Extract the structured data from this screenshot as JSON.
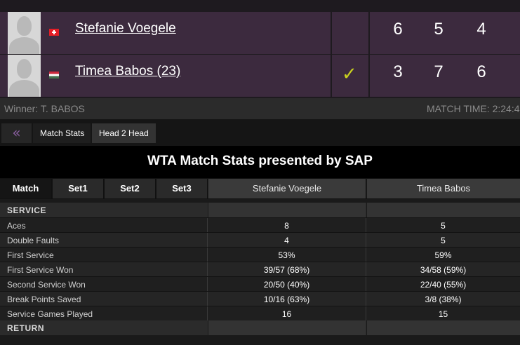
{
  "scoreboard": {
    "players": [
      {
        "name": "Stefanie Voegele",
        "flag": "sui-flag-icon",
        "winner": false,
        "sets": [
          "6",
          "5",
          "4"
        ]
      },
      {
        "name": "Timea Babos (23)",
        "flag": "hun-flag-icon",
        "winner": true,
        "check": "✓",
        "sets": [
          "3",
          "7",
          "6"
        ]
      }
    ],
    "winner_text": "Winner: T. BABOS",
    "match_time": "MATCH TIME: 2:24:4"
  },
  "tabs": {
    "back_icon": "«",
    "items": [
      {
        "label": "Match Stats"
      },
      {
        "label": "Head 2 Head"
      }
    ]
  },
  "stats": {
    "title": "WTA Match Stats presented by SAP",
    "filters": [
      "Match",
      "Set1",
      "Set2",
      "Set3"
    ],
    "player1": "Stefanie Voegele",
    "player2": "Timea Babos",
    "sections": {
      "service": "SERVICE",
      "return": "RETURN"
    },
    "rows": [
      {
        "label": "Aces",
        "p1": "8",
        "p2": "5"
      },
      {
        "label": "Double Faults",
        "p1": "4",
        "p2": "5"
      },
      {
        "label": "First Service",
        "p1": "53%",
        "p2": "59%"
      },
      {
        "label": "First Service Won",
        "p1": "39/57 (68%)",
        "p2": "34/58 (59%)"
      },
      {
        "label": "Second Service Won",
        "p1": "20/50 (40%)",
        "p2": "22/40 (55%)"
      },
      {
        "label": "Break Points Saved",
        "p1": "10/16 (63%)",
        "p2": "3/8 (38%)"
      },
      {
        "label": "Service Games Played",
        "p1": "16",
        "p2": "15"
      }
    ]
  },
  "colors": {
    "accent_purple": "#3c2a3e",
    "check_color": "#c9d11f"
  }
}
